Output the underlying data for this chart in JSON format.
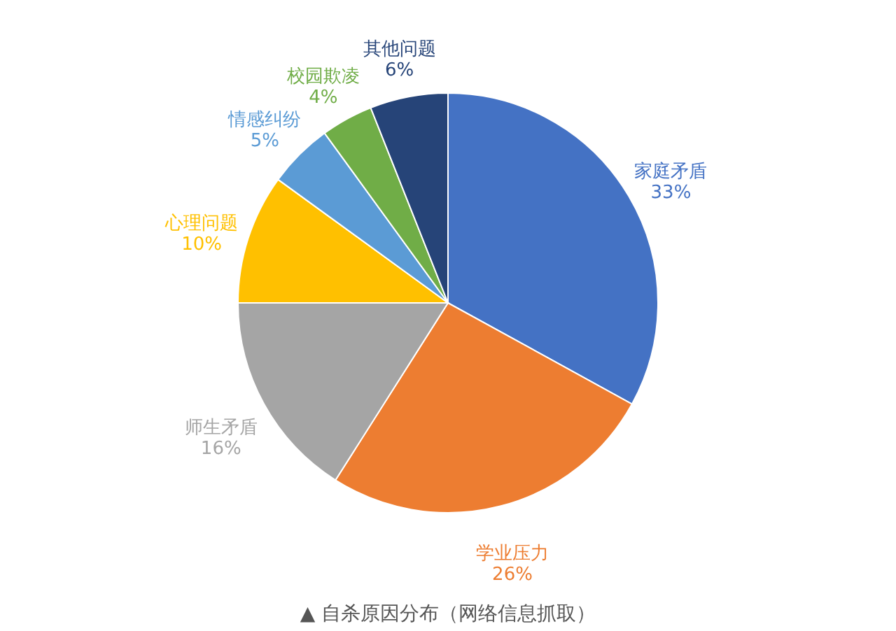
{
  "chart_data": {
    "type": "pie",
    "title": "▲ 自杀原因分布（网络信息抓取）",
    "categories": [
      "家庭矛盾",
      "学业压力",
      "师生矛盾",
      "心理问题",
      "情感纠纷",
      "校园欺凌",
      "其他问题"
    ],
    "values": [
      33,
      26,
      16,
      10,
      5,
      4,
      6
    ],
    "value_labels": [
      "33%",
      "26%",
      "16%",
      "10%",
      "5%",
      "4%",
      "6%"
    ],
    "colors": [
      "#4472c4",
      "#ed7d31",
      "#a5a5a5",
      "#ffc000",
      "#5b9bd5",
      "#70ad47",
      "#264478"
    ]
  }
}
